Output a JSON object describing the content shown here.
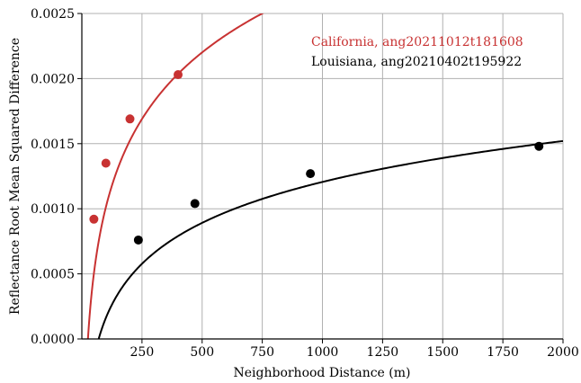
{
  "chart_data": {
    "type": "scatter",
    "xlabel": "Neighborhood Distance (m)",
    "ylabel": "Reflectance Root Mean Squared Difference",
    "xlim": [
      0,
      2000
    ],
    "ylim": [
      0,
      0.0025
    ],
    "x_ticks": [
      250,
      500,
      750,
      1000,
      1250,
      1500,
      1750,
      2000
    ],
    "x_tick_labels": [
      "250",
      "500",
      "750",
      "1000",
      "1250",
      "1500",
      "1750",
      "2000"
    ],
    "y_ticks": [
      0,
      0.0005,
      0.001,
      0.0015,
      0.002,
      0.0025
    ],
    "y_tick_labels": [
      "0.0000",
      "0.0005",
      "0.0010",
      "0.0015",
      "0.0020",
      "0.0025"
    ],
    "grid": true,
    "legend_position": "top-right",
    "series": [
      {
        "name": "California, ang20211012t181608",
        "color": "#c83232",
        "x": [
          50,
          100,
          200,
          400
        ],
        "y": [
          0.00092,
          0.00135,
          0.00169,
          0.00203
        ],
        "fit": {
          "form": "log",
          "a": -0.002386,
          "b": 0.0007381
        }
      },
      {
        "name": "Louisiana, ang20210402t195922",
        "color": "#000000",
        "x": [
          235,
          470,
          950,
          1900
        ],
        "y": [
          0.00076,
          0.00104,
          0.00127,
          0.00148
        ],
        "fit": {
          "form": "log",
          "a": -0.001926,
          "b": 0.0004534
        }
      }
    ]
  }
}
